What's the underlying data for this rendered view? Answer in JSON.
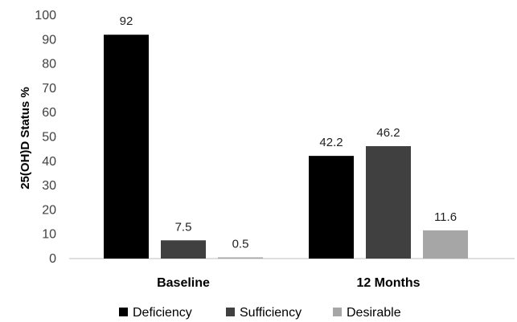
{
  "chart_data": {
    "type": "bar",
    "ylabel": "25(OH)D Status %",
    "xlabel": "",
    "ylim": [
      0,
      100
    ],
    "yticks": [
      0,
      10,
      20,
      30,
      40,
      50,
      60,
      70,
      80,
      90,
      100
    ],
    "categories": [
      "Baseline",
      "12 Months"
    ],
    "series": [
      {
        "name": "Deficiency",
        "values": [
          92,
          42.2
        ],
        "labels": [
          "92",
          "42.2"
        ],
        "color": "#000000"
      },
      {
        "name": "Sufficiency",
        "values": [
          7.5,
          46.2
        ],
        "labels": [
          "7.5",
          "46.2"
        ],
        "color": "#404040"
      },
      {
        "name": "Desirable",
        "values": [
          0.5,
          11.6
        ],
        "labels": [
          "0.5",
          "11.6"
        ],
        "color": "#a6a6a6"
      }
    ],
    "legend_position": "bottom",
    "grid": false
  }
}
